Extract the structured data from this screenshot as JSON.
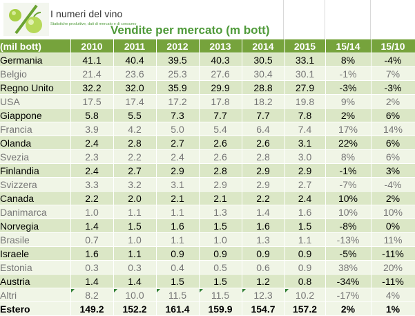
{
  "brand": {
    "name": "I numeri del vino",
    "tagline": "Statistiche produttive, dati di mercato e di consumo"
  },
  "title": "Vendite per mercato (m bott)",
  "header": [
    "(mil bott)",
    "2010",
    "2011",
    "2012",
    "2013",
    "2014",
    "2015",
    "15/14",
    "15/10"
  ],
  "rows": [
    {
      "label": "Germania",
      "values": [
        "41.1",
        "40.4",
        "39.5",
        "40.3",
        "30.5",
        "33.1",
        "8%",
        "-4%"
      ],
      "gray": false
    },
    {
      "label": "Belgio",
      "values": [
        "21.4",
        "23.6",
        "25.3",
        "27.6",
        "30.4",
        "30.1",
        "-1%",
        "7%"
      ],
      "gray": true
    },
    {
      "label": "Regno Unito",
      "values": [
        "32.2",
        "32.0",
        "35.9",
        "29.9",
        "28.8",
        "27.9",
        "-3%",
        "-3%"
      ],
      "gray": false
    },
    {
      "label": "USA",
      "values": [
        "17.5",
        "17.4",
        "17.2",
        "17.8",
        "18.2",
        "19.8",
        "9%",
        "2%"
      ],
      "gray": true
    },
    {
      "label": "Giappone",
      "values": [
        "5.8",
        "5.5",
        "7.3",
        "7.7",
        "7.7",
        "7.8",
        "2%",
        "6%"
      ],
      "gray": false
    },
    {
      "label": "Francia",
      "values": [
        "3.9",
        "4.2",
        "5.0",
        "5.4",
        "6.4",
        "7.4",
        "17%",
        "14%"
      ],
      "gray": true
    },
    {
      "label": "Olanda",
      "values": [
        "2.4",
        "2.8",
        "2.7",
        "2.6",
        "2.6",
        "3.1",
        "22%",
        "6%"
      ],
      "gray": false
    },
    {
      "label": "Svezia",
      "values": [
        "2.3",
        "2.2",
        "2.4",
        "2.6",
        "2.8",
        "3.0",
        "8%",
        "6%"
      ],
      "gray": true
    },
    {
      "label": "Finlandia",
      "values": [
        "2.4",
        "2.7",
        "2.9",
        "2.8",
        "2.9",
        "2.9",
        "-1%",
        "3%"
      ],
      "gray": false
    },
    {
      "label": "Svizzera",
      "values": [
        "3.3",
        "3.2",
        "3.1",
        "2.9",
        "2.9",
        "2.7",
        "-7%",
        "-4%"
      ],
      "gray": true
    },
    {
      "label": "Canada",
      "values": [
        "2.2",
        "2.0",
        "2.1",
        "2.1",
        "2.2",
        "2.4",
        "10%",
        "2%"
      ],
      "gray": false
    },
    {
      "label": "Danimarca",
      "values": [
        "1.0",
        "1.1",
        "1.1",
        "1.3",
        "1.4",
        "1.6",
        "10%",
        "10%"
      ],
      "gray": true
    },
    {
      "label": "Norvegia",
      "values": [
        "1.4",
        "1.5",
        "1.6",
        "1.5",
        "1.6",
        "1.5",
        "-8%",
        "0%"
      ],
      "gray": false
    },
    {
      "label": "Brasile",
      "values": [
        "0.7",
        "1.0",
        "1.1",
        "1.0",
        "1.3",
        "1.1",
        "-13%",
        "11%"
      ],
      "gray": true
    },
    {
      "label": "Israele",
      "values": [
        "1.6",
        "1.1",
        "0.9",
        "0.9",
        "0.9",
        "0.9",
        "-5%",
        "-11%"
      ],
      "gray": false
    },
    {
      "label": "Estonia",
      "values": [
        "0.3",
        "0.3",
        "0.4",
        "0.5",
        "0.6",
        "0.9",
        "38%",
        "20%"
      ],
      "gray": true
    },
    {
      "label": "Austria",
      "values": [
        "1.4",
        "1.4",
        "1.5",
        "1.5",
        "1.2",
        "0.8",
        "-34%",
        "-11%"
      ],
      "gray": false
    },
    {
      "label": "Altri",
      "values": [
        "8.2",
        "10.0",
        "11.5",
        "11.5",
        "12.3",
        "10.2",
        "-17%",
        "4%"
      ],
      "gray": true
    }
  ],
  "total": {
    "label": "Estero",
    "values": [
      "149.2",
      "152.2",
      "161.4",
      "159.9",
      "154.7",
      "157.2",
      "2%",
      "1%"
    ]
  },
  "colors": {
    "header_bg": "#76a33c",
    "row_dark": "#dbe7c6",
    "row_light": "#f0f5e6",
    "title": "#4f9a3a",
    "gray_text": "#767676",
    "indicator": "#2e7d32"
  },
  "icons": [
    "logo-grapes-percent-icon",
    "cell-indicator-triangle-icon"
  ]
}
